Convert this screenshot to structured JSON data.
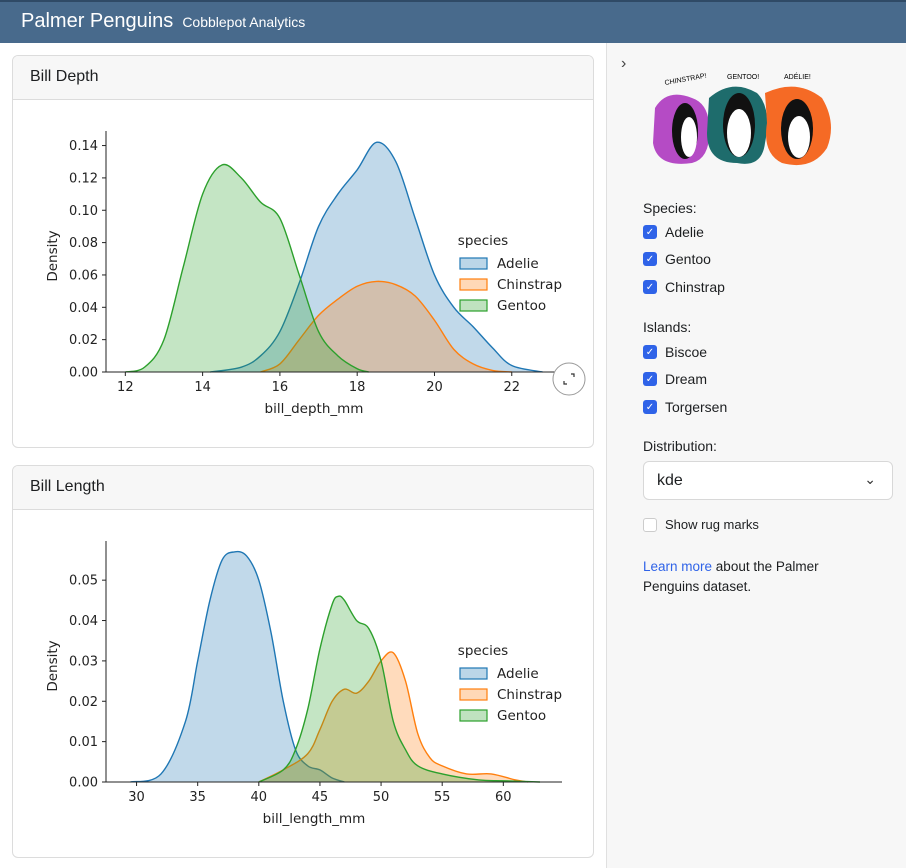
{
  "header": {
    "title": "Palmer Penguins",
    "subtitle": "Cobblepot Analytics"
  },
  "cards": [
    {
      "title": "Bill Depth"
    },
    {
      "title": "Bill Length"
    }
  ],
  "sidebar": {
    "collapse_icon": "chevron-right-icon",
    "logo_text": [
      "CHINSTRAP!",
      "GENTOO!",
      "ADÉLIE!"
    ],
    "species_label": "Species:",
    "species": [
      {
        "label": "Adelie",
        "checked": true
      },
      {
        "label": "Gentoo",
        "checked": true
      },
      {
        "label": "Chinstrap",
        "checked": true
      }
    ],
    "islands_label": "Islands:",
    "islands": [
      {
        "label": "Biscoe",
        "checked": true
      },
      {
        "label": "Dream",
        "checked": true
      },
      {
        "label": "Torgersen",
        "checked": true
      }
    ],
    "distribution_label": "Distribution:",
    "distribution_value": "kde",
    "rug_label": "Show rug marks",
    "rug_checked": false,
    "learn_link": "Learn more",
    "learn_text": " about the Palmer Penguins dataset."
  },
  "colors": {
    "Adelie": "#1f77b4",
    "Chinstrap": "#ff7f0e",
    "Gentoo": "#2ca02c",
    "header": "#486a8c",
    "accent": "#2f63e8"
  },
  "chart_data": [
    {
      "type": "area",
      "xlabel": "bill_depth_mm",
      "ylabel": "Density",
      "xlim": [
        11.5,
        23.3
      ],
      "ylim": [
        0,
        0.149
      ],
      "xticks": [
        12,
        14,
        16,
        18,
        20,
        22
      ],
      "yticks": [
        "0.00",
        "0.02",
        "0.04",
        "0.06",
        "0.08",
        "0.10",
        "0.12",
        "0.14"
      ],
      "legend_title": "species",
      "legend_position": "right",
      "series": [
        {
          "name": "Adelie",
          "x": [
            14.2,
            15,
            15.5,
            16,
            16.5,
            17,
            17.5,
            18,
            18.5,
            19,
            19.5,
            20,
            20.5,
            21,
            21.5,
            22,
            22.8
          ],
          "y": [
            0,
            0.003,
            0.01,
            0.025,
            0.055,
            0.09,
            0.11,
            0.125,
            0.142,
            0.13,
            0.095,
            0.06,
            0.04,
            0.028,
            0.015,
            0.004,
            0
          ]
        },
        {
          "name": "Chinstrap",
          "x": [
            15.5,
            16,
            16.5,
            17,
            17.5,
            18,
            18.5,
            19,
            19.5,
            20,
            20.5,
            21,
            21.5,
            22
          ],
          "y": [
            0,
            0.005,
            0.02,
            0.035,
            0.045,
            0.053,
            0.056,
            0.054,
            0.047,
            0.032,
            0.014,
            0.005,
            0.001,
            0
          ]
        },
        {
          "name": "Gentoo",
          "x": [
            12,
            12.5,
            13,
            13.5,
            14,
            14.5,
            15,
            15.5,
            16,
            16.5,
            17,
            17.5,
            18,
            18.3
          ],
          "y": [
            0,
            0.003,
            0.02,
            0.065,
            0.11,
            0.128,
            0.12,
            0.105,
            0.095,
            0.06,
            0.025,
            0.01,
            0.002,
            0
          ]
        }
      ]
    },
    {
      "type": "area",
      "xlabel": "bill_length_mm",
      "ylabel": "Density",
      "xlim": [
        27.5,
        64.8
      ],
      "ylim": [
        0,
        0.0597
      ],
      "xticks": [
        30,
        35,
        40,
        45,
        50,
        55,
        60
      ],
      "yticks": [
        "0.00",
        "0.01",
        "0.02",
        "0.03",
        "0.04",
        "0.05"
      ],
      "legend_title": "species",
      "legend_position": "right",
      "series": [
        {
          "name": "Adelie",
          "x": [
            29.5,
            32,
            34,
            35,
            36,
            37,
            38,
            39,
            40,
            41,
            42,
            43,
            44,
            45,
            46,
            47
          ],
          "y": [
            0,
            0.002,
            0.015,
            0.03,
            0.045,
            0.055,
            0.057,
            0.056,
            0.05,
            0.037,
            0.02,
            0.008,
            0.004,
            0.003,
            0.001,
            0
          ]
        },
        {
          "name": "Chinstrap",
          "x": [
            40,
            42,
            44,
            45,
            46,
            47,
            48,
            49,
            50,
            51,
            52,
            53,
            54,
            55,
            57,
            59,
            61,
            62
          ],
          "y": [
            0,
            0.003,
            0.007,
            0.013,
            0.02,
            0.023,
            0.022,
            0.025,
            0.03,
            0.032,
            0.025,
            0.012,
            0.006,
            0.004,
            0.002,
            0.002,
            0.0005,
            0
          ]
        },
        {
          "name": "Gentoo",
          "x": [
            40,
            42,
            43,
            44,
            45,
            46,
            46.5,
            47,
            48,
            49,
            50,
            51,
            52,
            53,
            55,
            58,
            60,
            63
          ],
          "y": [
            0,
            0.003,
            0.008,
            0.018,
            0.033,
            0.044,
            0.046,
            0.045,
            0.04,
            0.038,
            0.03,
            0.015,
            0.008,
            0.004,
            0.002,
            0.0005,
            0.0003,
            0
          ]
        }
      ]
    }
  ]
}
